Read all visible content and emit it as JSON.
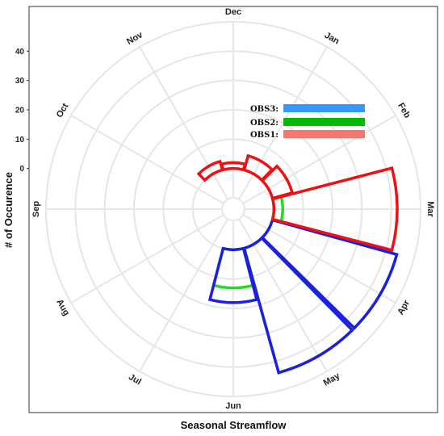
{
  "chart_data": {
    "type": "polar-bar",
    "xlabel": "Seasonal Streamflow",
    "ylabel": "# of Occurence",
    "months": [
      "Jan",
      "Feb",
      "Mar",
      "Apr",
      "May",
      "Jun",
      "Jul",
      "Aug",
      "Sep",
      "Oct",
      "Nov",
      "Dec"
    ],
    "yticks": [
      0,
      10,
      20,
      30,
      40
    ],
    "ylim": [
      -10,
      50
    ],
    "grid": true,
    "legend_position": "top-right",
    "series": [
      {
        "name": "OBS3:",
        "color": "#3399ff",
        "values": [
          0,
          0,
          0,
          44,
          44,
          18,
          0,
          0,
          0,
          0,
          0,
          0
        ]
      },
      {
        "name": "OBS2:",
        "color": "#00bb00",
        "values": [
          0,
          0,
          3,
          44,
          44,
          13,
          0,
          0,
          0,
          0,
          0,
          0
        ]
      },
      {
        "name": "OBS1:",
        "color": "#f8766d",
        "values": [
          5,
          7,
          42,
          0,
          0,
          0,
          0,
          0,
          0,
          0,
          3,
          2
        ]
      }
    ]
  }
}
